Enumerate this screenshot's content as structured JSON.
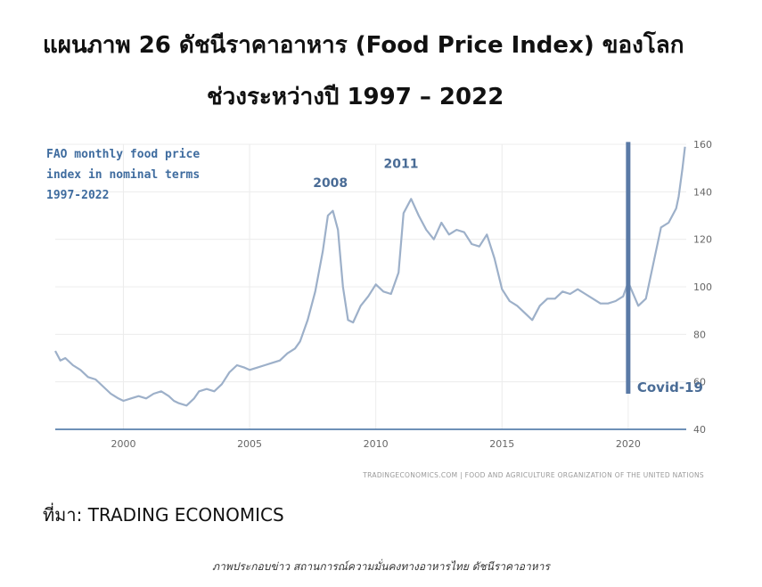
{
  "title": {
    "line1": "แผนภาพ 26 ดัชนีราคาอาหาร (Food Price Index) ของโลก",
    "line2": "ช่วงระหว่างปี 1997 – 2022"
  },
  "source": "ที่มา: TRADING ECONOMICS",
  "caption": "ภาพประกอบข่าว สถานการณ์ความมั่นคงทางอาหารไทย ดัชนีราคาอาหาร",
  "chart_data": {
    "type": "line",
    "legend_lines": [
      "FAO monthly food price",
      "index in nominal terms",
      "1997-2022"
    ],
    "credit": "TRADINGECONOMICS.COM | FOOD AND AGRICULTURE ORGANIZATION OF THE UNITED NATIONS",
    "x_ticks": [
      2000,
      2005,
      2010,
      2015,
      2020
    ],
    "y_ticks": [
      40,
      60,
      80,
      100,
      120,
      140,
      160
    ],
    "xlim": [
      1997.3,
      2022.3
    ],
    "ylim": [
      40,
      160
    ],
    "grid": true,
    "y_axis_side": "right",
    "line_color": "#9db0c9",
    "marker_color": "#5a7aa6",
    "annotations": [
      {
        "text": "2008",
        "x": 2008.2,
        "y": 142
      },
      {
        "text": "2011",
        "x": 2011.0,
        "y": 150
      }
    ],
    "marker": {
      "x": 2020.0,
      "y_from": 55,
      "y_to": 161,
      "label": "Covid-19"
    },
    "series": [
      {
        "x": [
          1997.3,
          1997.5,
          1997.7,
          1998.0,
          1998.3,
          1998.6,
          1998.9,
          1999.2,
          1999.5,
          1999.8,
          2000.0,
          2000.3,
          2000.6,
          2000.9,
          2001.2,
          2001.5,
          2001.8,
          2002.0,
          2002.2,
          2002.5,
          2002.8,
          2003.0,
          2003.3,
          2003.6,
          2003.9,
          2004.2,
          2004.5,
          2004.8,
          2005.0,
          2005.3,
          2005.6,
          2005.9,
          2006.2,
          2006.5,
          2006.8,
          2007.0,
          2007.3,
          2007.6,
          2007.9,
          2008.1,
          2008.3,
          2008.5,
          2008.7,
          2008.9,
          2009.1,
          2009.4,
          2009.7,
          2010.0,
          2010.3,
          2010.6,
          2010.9,
          2011.1,
          2011.4,
          2011.7,
          2012.0,
          2012.3,
          2012.6,
          2012.9,
          2013.2,
          2013.5,
          2013.8,
          2014.1,
          2014.4,
          2014.7,
          2015.0,
          2015.3,
          2015.6,
          2015.9,
          2016.2,
          2016.5,
          2016.8,
          2017.1,
          2017.4,
          2017.7,
          2018.0,
          2018.3,
          2018.6,
          2018.9,
          2019.2,
          2019.5,
          2019.8,
          2020.0,
          2020.2,
          2020.4,
          2020.7,
          2021.0,
          2021.3,
          2021.6,
          2021.9,
          2022.0,
          2022.15,
          2022.25
        ],
        "y": [
          73,
          69,
          70,
          67,
          65,
          62,
          61,
          58,
          55,
          53,
          52,
          53,
          54,
          53,
          55,
          56,
          54,
          52,
          51,
          50,
          53,
          56,
          57,
          56,
          59,
          64,
          67,
          66,
          65,
          66,
          67,
          68,
          69,
          72,
          74,
          77,
          86,
          98,
          115,
          130,
          132,
          124,
          100,
          86,
          85,
          92,
          96,
          101,
          98,
          97,
          106,
          131,
          137,
          130,
          124,
          120,
          127,
          122,
          124,
          123,
          118,
          117,
          122,
          112,
          99,
          94,
          92,
          89,
          86,
          92,
          95,
          95,
          98,
          97,
          99,
          97,
          95,
          93,
          93,
          94,
          96,
          102,
          97,
          92,
          95,
          110,
          125,
          127,
          133,
          138,
          150,
          159
        ]
      }
    ]
  }
}
